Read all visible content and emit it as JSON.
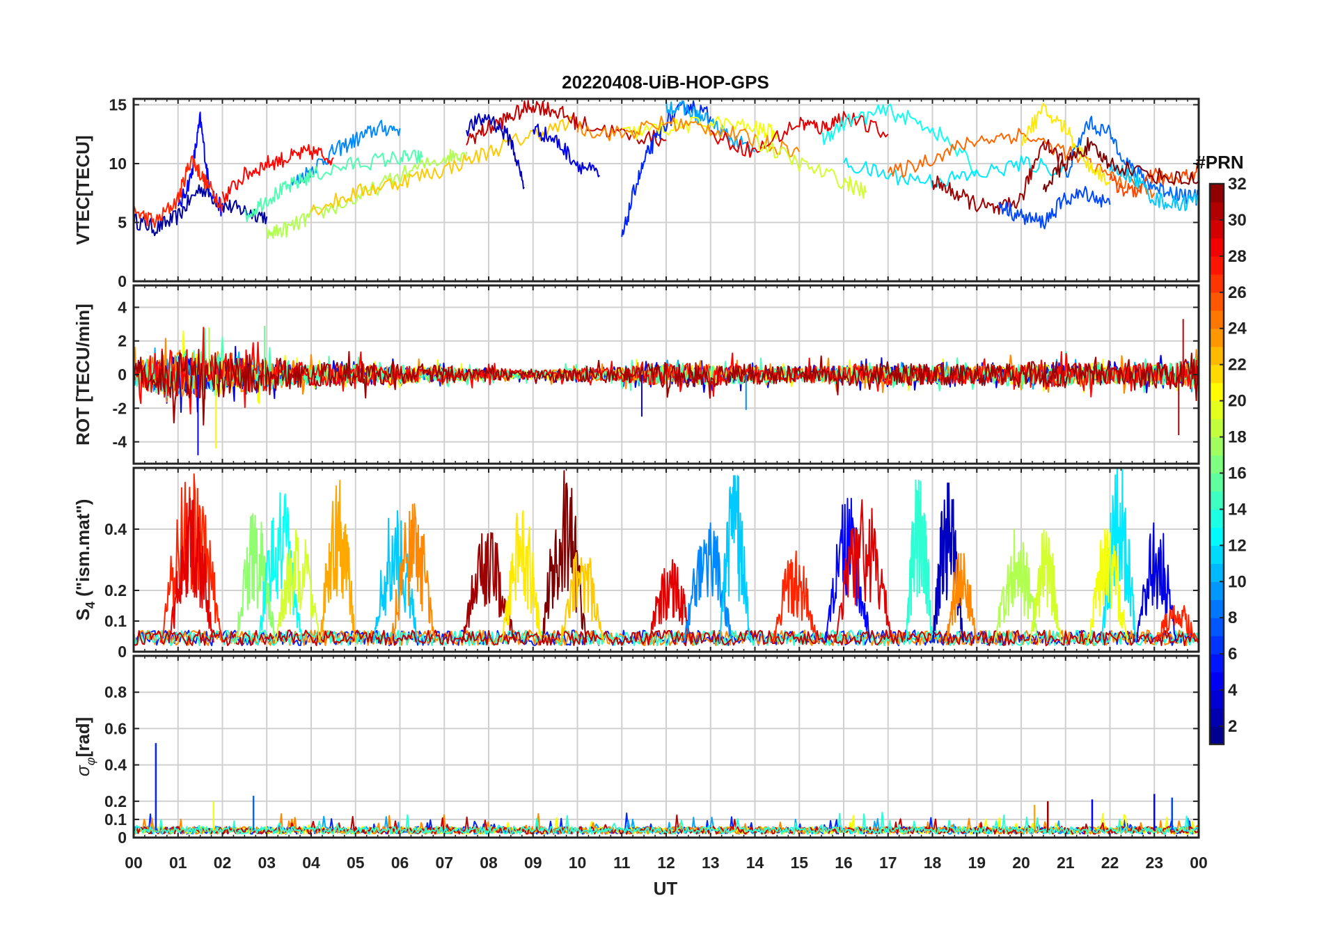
{
  "figure": {
    "title": "20220408-UiB-HOP-GPS",
    "xlabel": "UT",
    "x_ticks": [
      "00",
      "01",
      "02",
      "03",
      "04",
      "05",
      "06",
      "07",
      "08",
      "09",
      "10",
      "11",
      "12",
      "13",
      "14",
      "15",
      "16",
      "17",
      "18",
      "19",
      "20",
      "21",
      "22",
      "23",
      "00"
    ],
    "colorbar": {
      "title": "#PRN",
      "range": [
        1,
        32
      ],
      "ticks": [
        2,
        4,
        6,
        8,
        10,
        12,
        14,
        16,
        18,
        20,
        22,
        24,
        26,
        28,
        30,
        32
      ],
      "colormap": "jet"
    }
  },
  "chart_data": [
    {
      "type": "line",
      "ylabel": "VTEC[TECU]",
      "ylim": [
        0,
        15.5
      ],
      "xlim": [
        0,
        24
      ],
      "y_ticks": [
        0,
        5,
        10,
        15
      ],
      "grid": true,
      "series": [
        {
          "prn": 2,
          "x": [
            0,
            0.5,
            1.0,
            1.5,
            2.0,
            2.5,
            3.0
          ],
          "y": [
            5.2,
            4.5,
            5.5,
            8.0,
            6.5,
            6.0,
            5.5
          ]
        },
        {
          "prn": 5,
          "x": [
            1.0,
            1.3,
            1.5,
            1.7,
            2.0
          ],
          "y": [
            6.0,
            9.0,
            13.8,
            8.0,
            6.0
          ]
        },
        {
          "prn": 27,
          "x": [
            0,
            0.5,
            1.0,
            1.3,
            1.6,
            2.0
          ],
          "y": [
            6.0,
            5.0,
            7.0,
            10.5,
            8.5,
            6.5
          ]
        },
        {
          "prn": 9,
          "x": [
            3.5,
            4.0,
            4.5,
            5.0,
            5.5,
            6.0
          ],
          "y": [
            8.0,
            9.5,
            11.0,
            12.0,
            13.0,
            13.0
          ]
        },
        {
          "prn": 28,
          "x": [
            2.0,
            2.5,
            3.0,
            3.5,
            4.0,
            4.5
          ],
          "y": [
            7.0,
            9.0,
            10.0,
            10.5,
            11.0,
            10.5
          ]
        },
        {
          "prn": 15,
          "x": [
            2.5,
            3.0,
            3.5,
            4.0,
            5.0,
            6.0,
            6.5
          ],
          "y": [
            5.5,
            7.0,
            8.0,
            9.0,
            10.0,
            10.5,
            10.5
          ]
        },
        {
          "prn": 18,
          "x": [
            3.0,
            3.5,
            4.0,
            5.0,
            6.0,
            7.0,
            7.5
          ],
          "y": [
            4.0,
            4.5,
            5.5,
            7.0,
            9.0,
            10.5,
            11.0
          ]
        },
        {
          "prn": 22,
          "x": [
            4.0,
            5.0,
            6.0,
            7.0,
            8.0,
            9.0,
            10.0
          ],
          "y": [
            6.0,
            7.5,
            8.5,
            9.5,
            11.0,
            12.5,
            13.5
          ]
        },
        {
          "prn": 30,
          "x": [
            7.5,
            8.0,
            8.5,
            9.0,
            9.5,
            10.0,
            11.0,
            12.0
          ],
          "y": [
            12.0,
            13.0,
            14.0,
            15.0,
            14.5,
            13.5,
            12.5,
            12.0
          ]
        },
        {
          "prn": 3,
          "x": [
            7.5,
            8.0,
            8.5,
            8.8
          ],
          "y": [
            13.0,
            14.0,
            12.0,
            8.0
          ]
        },
        {
          "prn": 4,
          "x": [
            9.0,
            9.5,
            10.0,
            10.5
          ],
          "y": [
            13.0,
            12.0,
            10.0,
            9.0
          ]
        },
        {
          "prn": 6,
          "x": [
            11.0,
            11.3,
            11.6,
            12.0,
            12.5,
            13.0
          ],
          "y": [
            3.5,
            8.0,
            11.0,
            13.5,
            15.0,
            14.0
          ]
        },
        {
          "prn": 10,
          "x": [
            12.0,
            12.5,
            13.0,
            13.5,
            14.0
          ],
          "y": [
            15.0,
            14.5,
            13.5,
            12.0,
            11.0
          ]
        },
        {
          "prn": 20,
          "x": [
            11.0,
            12.0,
            13.0,
            14.0,
            14.5
          ],
          "y": [
            12.5,
            13.0,
            13.5,
            13.0,
            12.5
          ]
        },
        {
          "prn": 24,
          "x": [
            10.0,
            11.0,
            12.0,
            13.0,
            14.0,
            15.0
          ],
          "y": [
            13.0,
            12.5,
            13.5,
            13.0,
            12.0,
            11.0
          ]
        },
        {
          "prn": 29,
          "x": [
            13.0,
            14.0,
            15.0,
            15.5,
            16.0,
            17.0
          ],
          "y": [
            12.5,
            11.0,
            13.5,
            13.0,
            14.0,
            12.5
          ]
        },
        {
          "prn": 13,
          "x": [
            15.5,
            16.0,
            17.0,
            18.0,
            19.0
          ],
          "y": [
            12.0,
            13.5,
            14.5,
            13.0,
            9.5
          ]
        },
        {
          "prn": 19,
          "x": [
            14.0,
            15.0,
            16.0,
            16.5
          ],
          "y": [
            12.0,
            10.0,
            8.5,
            7.5
          ]
        },
        {
          "prn": 12,
          "x": [
            16.0,
            17.0,
            18.0,
            19.0,
            20.0,
            21.0
          ],
          "y": [
            10.0,
            9.0,
            8.5,
            9.0,
            10.0,
            9.5
          ]
        },
        {
          "prn": 25,
          "x": [
            17.0,
            18.0,
            19.0,
            20.0,
            21.0,
            22.0,
            23.0
          ],
          "y": [
            9.0,
            10.5,
            12.0,
            12.5,
            11.0,
            9.0,
            7.5
          ]
        },
        {
          "prn": 31,
          "x": [
            18.0,
            18.5,
            19.0,
            19.5,
            20.0,
            20.5,
            21.0
          ],
          "y": [
            8.5,
            7.5,
            6.5,
            6.0,
            7.0,
            12.0,
            10.0
          ]
        },
        {
          "prn": 7,
          "x": [
            19.5,
            20.0,
            20.5,
            21.0,
            21.5,
            22.0
          ],
          "y": [
            6.5,
            5.5,
            5.0,
            7.0,
            7.5,
            6.5
          ]
        },
        {
          "prn": 8,
          "x": [
            21.0,
            21.5,
            22.0,
            22.5,
            23.0,
            23.5,
            24.0
          ],
          "y": [
            9.0,
            13.5,
            12.5,
            9.5,
            8.0,
            7.5,
            7.0
          ]
        },
        {
          "prn": 21,
          "x": [
            20.0,
            20.5,
            21.0,
            21.5,
            22.0
          ],
          "y": [
            12.0,
            14.5,
            13.0,
            10.0,
            8.5
          ]
        },
        {
          "prn": 26,
          "x": [
            22.0,
            22.5,
            23.0,
            23.5,
            24.0
          ],
          "y": [
            8.5,
            7.5,
            9.0,
            8.5,
            9.5
          ]
        },
        {
          "prn": 11,
          "x": [
            22.0,
            22.5,
            23.0,
            23.5,
            24.0
          ],
          "y": [
            9.5,
            9.0,
            7.0,
            6.5,
            7.0
          ]
        },
        {
          "prn": 32,
          "x": [
            20.5,
            21.0,
            21.5,
            22.0,
            23.0,
            24.0
          ],
          "y": [
            8.0,
            10.0,
            11.5,
            10.0,
            9.0,
            8.5
          ]
        }
      ]
    },
    {
      "type": "line",
      "ylabel": "ROT [TECU/min]",
      "ylim": [
        -5.3,
        5.3
      ],
      "xlim": [
        0,
        24
      ],
      "y_ticks": [
        -4,
        -2,
        0,
        2,
        4
      ],
      "grid": true,
      "noise_envelope": {
        "x": [
          0,
          1,
          2,
          3,
          4,
          5,
          6,
          7,
          8,
          9,
          10,
          11,
          12,
          13,
          14,
          15,
          16,
          17,
          18,
          19,
          20,
          21,
          22,
          23,
          24
        ],
        "amplitude": [
          1.2,
          2.2,
          1.8,
          1.4,
          0.9,
          0.9,
          0.8,
          0.7,
          0.5,
          0.4,
          0.5,
          0.6,
          1.0,
          0.9,
          0.8,
          0.6,
          0.8,
          0.9,
          0.8,
          0.8,
          1.0,
          1.0,
          0.8,
          1.0,
          1.2
        ]
      },
      "spikes": [
        {
          "x": 1.45,
          "y": -4.8,
          "prn": 5
        },
        {
          "x": 1.85,
          "y": -4.4,
          "prn": 20
        },
        {
          "x": 1.7,
          "y": 2.8,
          "prn": 18
        },
        {
          "x": 2.95,
          "y": 2.9,
          "prn": 16
        },
        {
          "x": 11.45,
          "y": -2.5,
          "prn": 4
        },
        {
          "x": 13.8,
          "y": -2.1,
          "prn": 9
        },
        {
          "x": 23.65,
          "y": 3.3,
          "prn": 30
        },
        {
          "x": 23.55,
          "y": -3.6,
          "prn": 31
        }
      ]
    },
    {
      "type": "line",
      "ylabel": "S4 (\"ism.mat\")",
      "ylim": [
        0,
        0.6
      ],
      "xlim": [
        0,
        24
      ],
      "y_ticks": [
        0,
        0.1,
        0.2,
        0.4
      ],
      "grid": true,
      "bursts": [
        {
          "prn": 27,
          "x": [
            0.6,
            2.0
          ],
          "peak": 0.58
        },
        {
          "prn": 29,
          "x": [
            0.8,
            1.8
          ],
          "peak": 0.5
        },
        {
          "prn": 17,
          "x": [
            2.3,
            3.2
          ],
          "peak": 0.45
        },
        {
          "prn": 13,
          "x": [
            2.8,
            3.8
          ],
          "peak": 0.52
        },
        {
          "prn": 19,
          "x": [
            3.2,
            4.2
          ],
          "peak": 0.4
        },
        {
          "prn": 23,
          "x": [
            4.2,
            5.0
          ],
          "peak": 0.57
        },
        {
          "prn": 11,
          "x": [
            5.4,
            6.4
          ],
          "peak": 0.46
        },
        {
          "prn": 24,
          "x": [
            5.8,
            6.8
          ],
          "peak": 0.49
        },
        {
          "prn": 31,
          "x": [
            7.4,
            8.6
          ],
          "peak": 0.4
        },
        {
          "prn": 21,
          "x": [
            8.3,
            9.2
          ],
          "peak": 0.46
        },
        {
          "prn": 32,
          "x": [
            9.2,
            10.2
          ],
          "peak": 0.6
        },
        {
          "prn": 22,
          "x": [
            9.6,
            10.6
          ],
          "peak": 0.33
        },
        {
          "prn": 29,
          "x": [
            11.6,
            12.6
          ],
          "peak": 0.3
        },
        {
          "prn": 9,
          "x": [
            12.4,
            13.5
          ],
          "peak": 0.42
        },
        {
          "prn": 11,
          "x": [
            13.2,
            13.9
          ],
          "peak": 0.58
        },
        {
          "prn": 27,
          "x": [
            14.4,
            15.4
          ],
          "peak": 0.33
        },
        {
          "prn": 5,
          "x": [
            15.6,
            16.6
          ],
          "peak": 0.5
        },
        {
          "prn": 29,
          "x": [
            15.8,
            17.1
          ],
          "peak": 0.5
        },
        {
          "prn": 14,
          "x": [
            17.4,
            18.0
          ],
          "peak": 0.58
        },
        {
          "prn": 3,
          "x": [
            18.0,
            18.7
          ],
          "peak": 0.55
        },
        {
          "prn": 24,
          "x": [
            18.3,
            19.0
          ],
          "peak": 0.32
        },
        {
          "prn": 18,
          "x": [
            19.4,
            20.4
          ],
          "peak": 0.4
        },
        {
          "prn": 19,
          "x": [
            20.2,
            20.9
          ],
          "peak": 0.4
        },
        {
          "prn": 12,
          "x": [
            21.8,
            22.6
          ],
          "peak": 0.6
        },
        {
          "prn": 20,
          "x": [
            21.5,
            22.4
          ],
          "peak": 0.4
        },
        {
          "prn": 4,
          "x": [
            22.6,
            23.5
          ],
          "peak": 0.42
        },
        {
          "prn": 27,
          "x": [
            23.0,
            24.0
          ],
          "peak": 0.15
        }
      ]
    },
    {
      "type": "line",
      "ylabel": "σφ[rad]",
      "ylim": [
        0,
        1.0
      ],
      "xlim": [
        0,
        24
      ],
      "y_ticks": [
        0,
        0.1,
        0.2,
        0.4,
        0.6,
        0.8
      ],
      "grid": true,
      "baseline": 0.04,
      "spikes": [
        {
          "x": 0.5,
          "y": 0.52,
          "prn": 6
        },
        {
          "x": 1.8,
          "y": 0.2,
          "prn": 20
        },
        {
          "x": 2.7,
          "y": 0.23,
          "prn": 8
        },
        {
          "x": 20.3,
          "y": 0.18,
          "prn": 23
        },
        {
          "x": 20.6,
          "y": 0.2,
          "prn": 31
        },
        {
          "x": 21.6,
          "y": 0.21,
          "prn": 5
        },
        {
          "x": 23.0,
          "y": 0.24,
          "prn": 5
        },
        {
          "x": 23.4,
          "y": 0.22,
          "prn": 7
        }
      ]
    }
  ]
}
